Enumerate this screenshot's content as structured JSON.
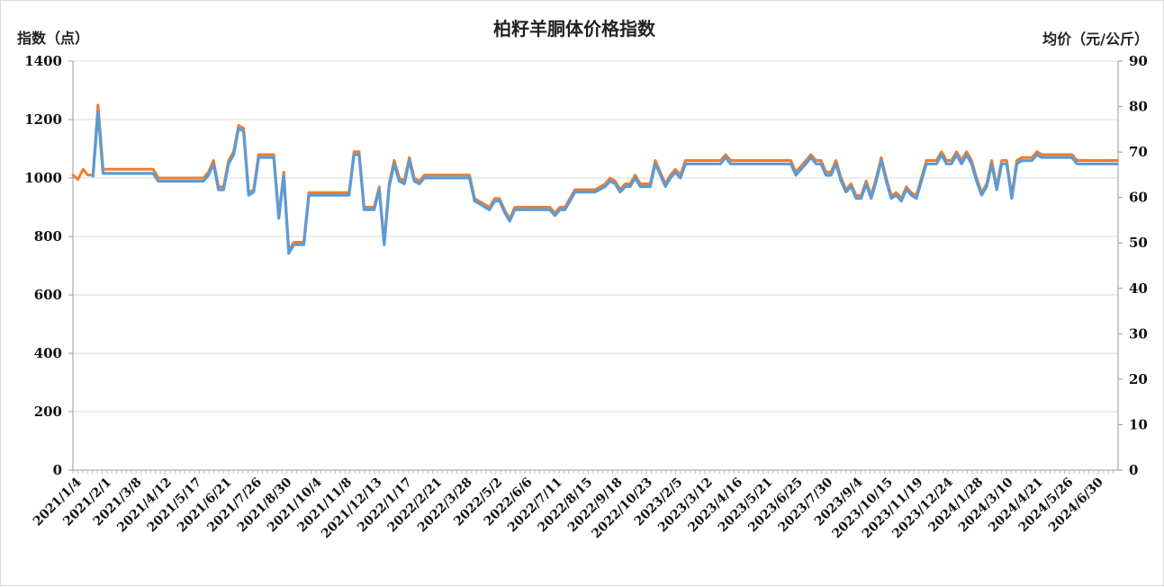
{
  "chart_data": {
    "type": "line",
    "title": "柏籽羊胴体价格指数",
    "ylabel_left": "指数（点）",
    "ylabel_right": "均价（元/公斤）",
    "ylim_left": [
      0,
      1400
    ],
    "ylim_right": [
      0,
      90
    ],
    "yticks_left": [
      "0",
      "200",
      "400",
      "600",
      "800",
      "1000",
      "1200",
      "1400"
    ],
    "yticks_right": [
      "0",
      "10",
      "20",
      "30",
      "40",
      "50",
      "60",
      "70",
      "80",
      "90"
    ],
    "grid": "horizontal",
    "x_tick_labels": [
      "2021/1/4",
      "2021/2/1",
      "2021/3/8",
      "2021/4/12",
      "2021/5/17",
      "2021/6/21",
      "2021/7/26",
      "2021/8/30",
      "2021/10/4",
      "2021/11/8",
      "2021/12/13",
      "2022/1/17",
      "2022/2/21",
      "2022/3/28",
      "2022/5/2",
      "2022/6/6",
      "2022/7/11",
      "2022/8/15",
      "2022/9/18",
      "2022/10/23",
      "2023/2/5",
      "2023/3/12",
      "2023/4/16",
      "2023/5/21",
      "2023/6/25",
      "2023/7/30",
      "2023/9/4",
      "2023/10/15",
      "2023/11/19",
      "2023/12/24",
      "2024/1/28",
      "2024/3/10",
      "2024/4/21",
      "2024/5/26",
      "2024/6/30"
    ],
    "series": [
      {
        "axis": "left",
        "color": "#ed7d31",
        "values": [
          1010,
          995,
          1030,
          1010,
          1010,
          1250,
          1030,
          1030,
          1030,
          1030,
          1030,
          1030,
          1030,
          1030,
          1030,
          1030,
          1030,
          1000,
          1000,
          1000,
          1000,
          1000,
          1000,
          1000,
          1000,
          1000,
          1000,
          1020,
          1060,
          970,
          970,
          1060,
          1090,
          1180,
          1170,
          950,
          960,
          1080,
          1080,
          1080,
          1080,
          870,
          1020,
          750,
          780,
          780,
          780,
          950,
          950,
          950,
          950,
          950,
          950,
          950,
          950,
          950,
          1090,
          1090,
          900,
          900,
          900,
          970,
          780,
          980,
          1060,
          1000,
          990,
          1070,
          1000,
          990,
          1010,
          1010,
          1010,
          1010,
          1010,
          1010,
          1010,
          1010,
          1010,
          1010,
          930,
          920,
          910,
          900,
          930,
          930,
          890,
          860,
          900,
          900,
          900,
          900,
          900,
          900,
          900,
          900,
          880,
          900,
          900,
          930,
          960,
          960,
          960,
          960,
          960,
          970,
          980,
          1000,
          990,
          960,
          980,
          980,
          1010,
          980,
          980,
          980,
          1060,
          1020,
          980,
          1010,
          1030,
          1010,
          1060,
          1060,
          1060,
          1060,
          1060,
          1060,
          1060,
          1060,
          1080,
          1060,
          1060,
          1060,
          1060,
          1060,
          1060,
          1060,
          1060,
          1060,
          1060,
          1060,
          1060,
          1060,
          1020,
          1040,
          1060,
          1080,
          1060,
          1060,
          1020,
          1020,
          1060,
          1000,
          960,
          980,
          940,
          940,
          990,
          940,
          1000,
          1070,
          1000,
          940,
          950,
          930,
          970,
          950,
          940,
          1000,
          1060,
          1060,
          1060,
          1090,
          1060,
          1060,
          1090,
          1060,
          1090,
          1060,
          1000,
          950,
          980,
          1060,
          970,
          1060,
          1060,
          940,
          1060,
          1070,
          1070,
          1070,
          1090,
          1080,
          1080,
          1080,
          1080,
          1080,
          1080,
          1080,
          1060,
          1060,
          1060,
          1060,
          1060,
          1060,
          1060,
          1060,
          1060
        ]
      },
      {
        "axis": "right",
        "color": "#5b9bd5",
        "values": [
          null,
          null,
          null,
          null,
          64.7,
          78.9,
          65.3,
          65.3,
          65.3,
          65.3,
          65.3,
          65.3,
          65.3,
          65.3,
          65.3,
          65.3,
          65.3,
          63.6,
          63.6,
          63.6,
          63.6,
          63.6,
          63.6,
          63.6,
          63.6,
          63.6,
          63.6,
          64.9,
          67.4,
          61.7,
          61.7,
          67.4,
          69.4,
          75.2,
          74.6,
          60.5,
          61.2,
          68.8,
          68.8,
          68.8,
          68.8,
          55.4,
          64.8,
          47.7,
          49.6,
          49.6,
          49.6,
          60.5,
          60.5,
          60.5,
          60.5,
          60.5,
          60.5,
          60.5,
          60.5,
          60.5,
          69.4,
          69.4,
          57.3,
          57.3,
          57.3,
          61.8,
          49.6,
          62.4,
          67.4,
          63.6,
          63.0,
          68.1,
          63.6,
          63.0,
          64.3,
          64.3,
          64.3,
          64.3,
          64.3,
          64.3,
          64.3,
          64.3,
          64.3,
          64.3,
          59.2,
          58.6,
          57.9,
          57.3,
          59.2,
          59.2,
          56.7,
          54.8,
          57.3,
          57.3,
          57.3,
          57.3,
          57.3,
          57.3,
          57.3,
          57.3,
          56.0,
          57.3,
          57.3,
          59.2,
          61.2,
          61.2,
          61.2,
          61.2,
          61.2,
          61.8,
          62.4,
          63.6,
          63.0,
          61.2,
          62.4,
          62.4,
          64.3,
          62.4,
          62.4,
          62.4,
          67.4,
          65.0,
          62.4,
          64.3,
          65.5,
          64.3,
          67.4,
          67.4,
          67.4,
          67.4,
          67.4,
          67.4,
          67.4,
          67.4,
          68.8,
          67.4,
          67.4,
          67.4,
          67.4,
          67.4,
          67.4,
          67.4,
          67.4,
          67.4,
          67.4,
          67.4,
          67.4,
          67.4,
          64.9,
          66.2,
          67.4,
          68.8,
          67.4,
          67.4,
          64.9,
          64.9,
          67.4,
          63.6,
          61.2,
          62.4,
          59.8,
          59.8,
          63.0,
          59.8,
          63.6,
          68.1,
          63.6,
          59.8,
          60.5,
          59.2,
          61.8,
          60.5,
          59.8,
          63.6,
          67.4,
          67.4,
          67.4,
          69.4,
          67.4,
          67.4,
          69.4,
          67.4,
          69.4,
          67.4,
          63.6,
          60.5,
          62.4,
          67.4,
          61.7,
          67.4,
          67.4,
          59.8,
          67.4,
          68.1,
          68.1,
          68.1,
          69.4,
          68.8,
          68.8,
          68.8,
          68.8,
          68.8,
          68.8,
          68.8,
          67.4,
          67.4,
          67.4,
          67.4,
          67.4,
          67.4,
          67.4,
          67.4,
          67.4
        ]
      }
    ]
  }
}
